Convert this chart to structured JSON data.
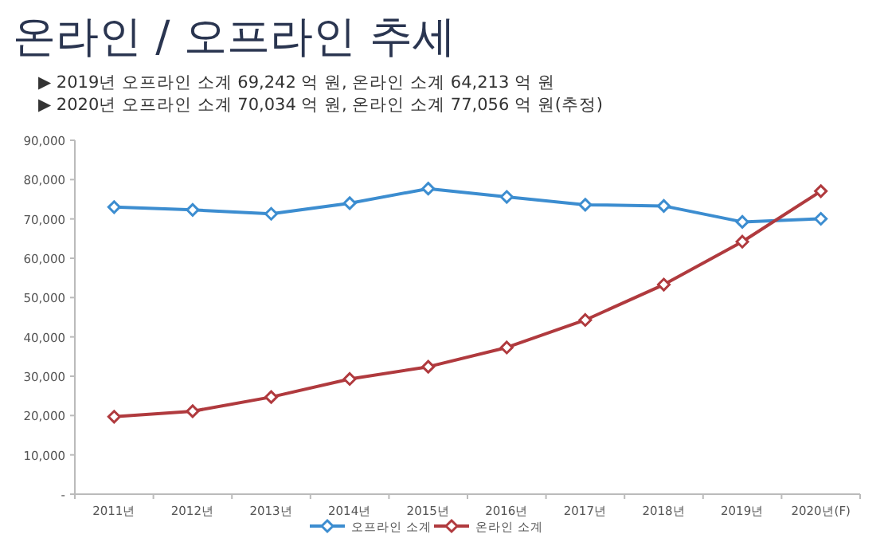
{
  "chart_data": {
    "type": "line",
    "title": "온라인 / 오프라인 추세",
    "annotations": [
      "▶ 2019년 오프라인 소계 69,242 억 원, 온라인 소계 64,213 억 원",
      "▶ 2020년 오프라인 소계 70,034 억 원, 온라인 소계 77,056 억 원(추정)"
    ],
    "categories": [
      "2011년",
      "2012년",
      "2013년",
      "2014년",
      "2015년",
      "2016년",
      "2017년",
      "2018년",
      "2019년",
      "2020년(F)"
    ],
    "series": [
      {
        "name": "오프라인 소계",
        "color": "#3c8dd0",
        "values": [
          73000,
          72300,
          71300,
          74000,
          77700,
          75600,
          73600,
          73300,
          69242,
          70034
        ]
      },
      {
        "name": "온라인 소계",
        "color": "#b03a3e",
        "values": [
          19700,
          21100,
          24700,
          29300,
          32400,
          37300,
          44300,
          53300,
          64213,
          77056
        ]
      }
    ],
    "ylim": [
      0,
      90000
    ],
    "yticks": [
      {
        "value": 0,
        "label": "-"
      },
      {
        "value": 10000,
        "label": "10,000"
      },
      {
        "value": 20000,
        "label": "20,000"
      },
      {
        "value": 30000,
        "label": "30,000"
      },
      {
        "value": 40000,
        "label": "40,000"
      },
      {
        "value": 50000,
        "label": "50,000"
      },
      {
        "value": 60000,
        "label": "60,000"
      },
      {
        "value": 70000,
        "label": "70,000"
      },
      {
        "value": 80000,
        "label": "80,000"
      },
      {
        "value": 90000,
        "label": "90,000"
      }
    ],
    "grid": false,
    "legend": "bottom",
    "marker": "diamond",
    "line_style": "solid"
  }
}
